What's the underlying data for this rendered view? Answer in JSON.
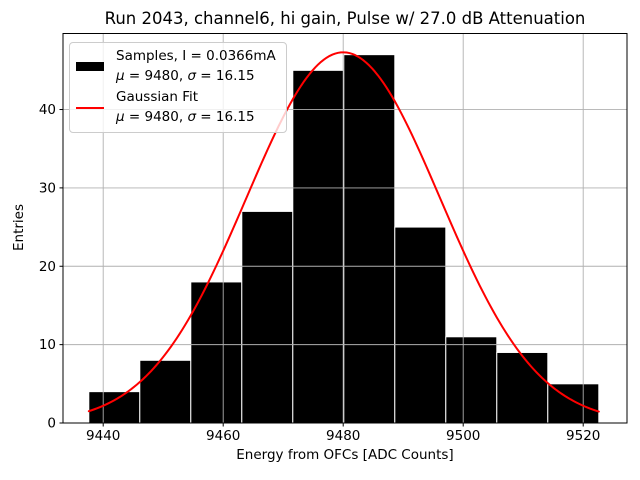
{
  "chart_data": {
    "type": "bar",
    "subtype": "histogram-with-gaussian-fit",
    "title": "Run 2043, channel6, hi gain, Pulse w/ 27.0 dB Attenuation",
    "xlabel": "Energy from OFCs [ADC Counts]",
    "ylabel": "Entries",
    "xlim": [
      9433.3,
      9527.3
    ],
    "ylim": [
      0,
      49.7
    ],
    "x_ticks": [
      9440,
      9460,
      9480,
      9500,
      9520
    ],
    "y_ticks": [
      0,
      10,
      20,
      30,
      40
    ],
    "grid": true,
    "legend_position": "upper left",
    "histogram": {
      "bin_edges": [
        9437.6,
        9446.1,
        9454.6,
        9463.1,
        9471.6,
        9480.1,
        9488.6,
        9497.1,
        9505.6,
        9514.1,
        9522.6
      ],
      "counts": [
        4,
        8,
        18,
        27,
        45,
        47,
        25,
        11,
        9,
        5
      ],
      "fill_color": "#000000",
      "edge_color": "#ffffff"
    },
    "gaussian_fit": {
      "mu": 9480,
      "sigma": 16.15,
      "peak": 47.3,
      "x_range": [
        9437.6,
        9522.6
      ],
      "color": "#ff0000"
    },
    "legend": {
      "entries": [
        {
          "swatch": "bar",
          "color": "#000000",
          "label": "Samples, I = 0.0366mA",
          "stats_parts": [
            "μ",
            " = 9480, ",
            "σ",
            " = 16.15"
          ]
        },
        {
          "swatch": "line",
          "color": "#ff0000",
          "label": "Gaussian Fit",
          "stats_parts": [
            "μ",
            " = 9480, ",
            "σ",
            " = 16.15"
          ]
        }
      ]
    },
    "colors": {
      "grid": "#b0b0b0",
      "spine": "#000000",
      "background": "#ffffff",
      "text": "#000000"
    }
  }
}
